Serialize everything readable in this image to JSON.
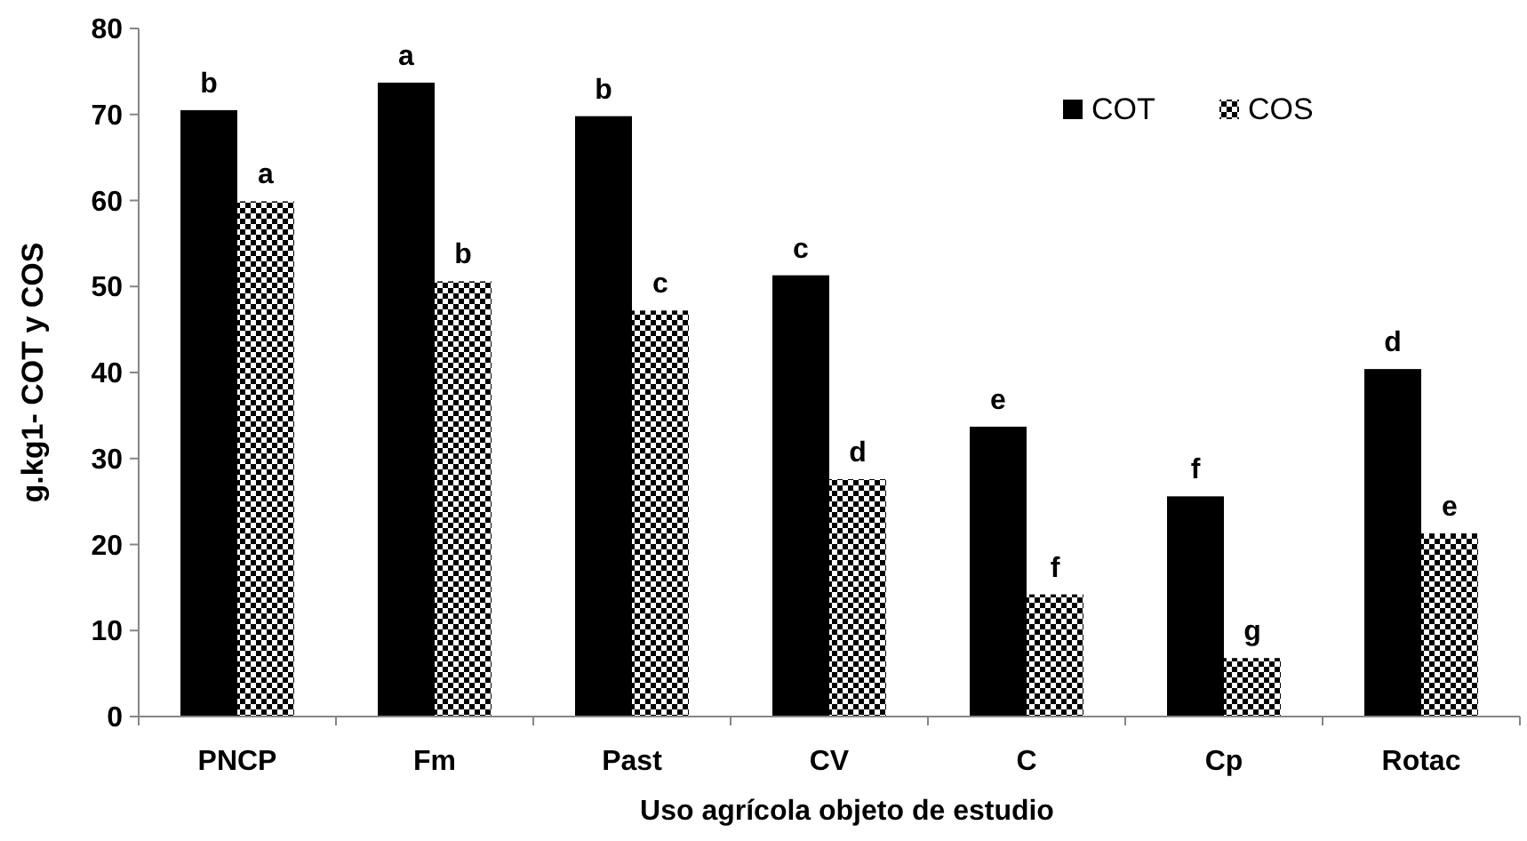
{
  "chart_data": {
    "type": "bar",
    "ylabel": "g.kg1- COT y COS",
    "xlabel": "Uso agrícola  objeto de estudio",
    "categories": [
      "PNCP",
      "Fm",
      "Past",
      "CV",
      "C",
      "Cp",
      "Rotac"
    ],
    "series": [
      {
        "name": "COT",
        "color": "#000000",
        "values": [
          70.5,
          73.7,
          69.8,
          51.3,
          33.7,
          25.6,
          40.4
        ]
      },
      {
        "name": "COS",
        "color": "#000000",
        "values": [
          59.9,
          50.6,
          47.2,
          27.6,
          14.2,
          6.8,
          21.3
        ]
      }
    ],
    "ylim": [
      0,
      80
    ],
    "yticks": [
      0,
      10,
      20,
      30,
      40,
      50,
      60,
      70,
      80
    ],
    "grid": false,
    "legend": "top right",
    "annotations": [
      {
        "text": "b",
        "x": "PNCP",
        "y": 70.5
      },
      {
        "text": "a",
        "x": "PNCP",
        "y": 59.9
      },
      {
        "text": "a",
        "x": "Fm",
        "y": 73.7
      },
      {
        "text": "b",
        "x": "Fm",
        "y": 50.6
      },
      {
        "text": "b",
        "x": "Past",
        "y": 69.8
      },
      {
        "text": "c",
        "x": "Past",
        "y": 47.2
      },
      {
        "text": "c",
        "x": "CV",
        "y": 51.3
      },
      {
        "text": "d",
        "x": "CV",
        "y": 27.6
      },
      {
        "text": "e",
        "x": "C",
        "y": 33.7
      },
      {
        "text": "f",
        "x": "C",
        "y": 14.2
      },
      {
        "text": "f",
        "x": "Cp",
        "y": 25.6
      },
      {
        "text": "g",
        "x": "Cp",
        "y": 6.8
      },
      {
        "text": "d",
        "x": "Rotac",
        "y": 40.4
      },
      {
        "text": "e",
        "x": "Rotac",
        "y": 21.3
      }
    ]
  }
}
